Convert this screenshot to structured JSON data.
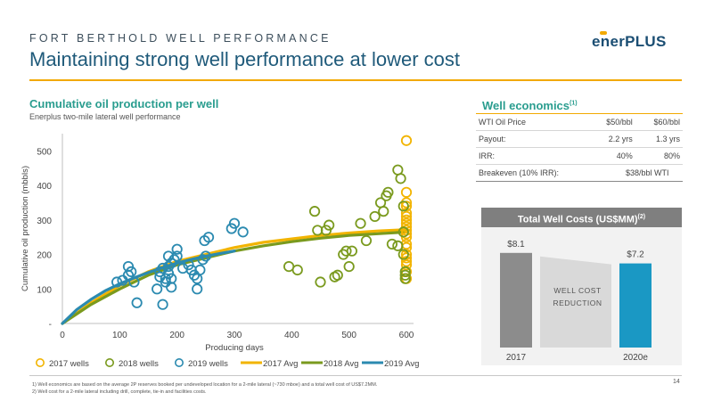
{
  "header": {
    "kicker": "FORT BERTHOLD WELL PERFORMANCE",
    "title": "Maintaining strong well performance at lower cost",
    "logo": {
      "part1": "ener",
      "part2": "PLUS"
    }
  },
  "colors": {
    "y2017": "#f2b400",
    "y2018": "#7a9a1e",
    "y2019": "#2b8ab0",
    "accent": "#f2a900",
    "teal": "#2a9d8f"
  },
  "chart_data": [
    {
      "type": "scatter",
      "title": "Cumulative oil production per well",
      "subtitle": "Enerplus two-mile lateral well performance",
      "xlabel": "Producing days",
      "ylabel": "Cumulative oil production (mbbls)",
      "xlim": [
        0,
        600
      ],
      "ylim": [
        0,
        550
      ],
      "xticks": [
        "0",
        "100",
        "200",
        "300",
        "400",
        "500",
        "600"
      ],
      "yticks": [
        "-",
        "100",
        "200",
        "300",
        "400",
        "500"
      ],
      "grid": false,
      "legend_position": "bottom",
      "series": [
        {
          "name": "2017 wells",
          "kind": "scatter",
          "color": "#f2b400",
          "points": [
            [
              600,
              530
            ],
            [
              600,
              380
            ],
            [
              600,
              350
            ],
            [
              600,
              340
            ],
            [
              600,
              320
            ],
            [
              600,
              310
            ],
            [
              600,
              300
            ],
            [
              600,
              290
            ],
            [
              600,
              280
            ],
            [
              600,
              270
            ],
            [
              600,
              260
            ],
            [
              600,
              250
            ],
            [
              600,
              230
            ],
            [
              600,
              220
            ],
            [
              600,
              200
            ],
            [
              600,
              190
            ],
            [
              600,
              180
            ],
            [
              600,
              170
            ],
            [
              600,
              150
            ],
            [
              600,
              130
            ]
          ]
        },
        {
          "name": "2018 wells",
          "kind": "scatter",
          "color": "#7a9a1e",
          "points": [
            [
              395,
              165
            ],
            [
              410,
              155
            ],
            [
              440,
              325
            ],
            [
              445,
              270
            ],
            [
              450,
              120
            ],
            [
              460,
              270
            ],
            [
              465,
              285
            ],
            [
              475,
              135
            ],
            [
              480,
              140
            ],
            [
              490,
              200
            ],
            [
              495,
              210
            ],
            [
              500,
              165
            ],
            [
              505,
              210
            ],
            [
              520,
              290
            ],
            [
              530,
              240
            ],
            [
              545,
              310
            ],
            [
              555,
              350
            ],
            [
              560,
              325
            ],
            [
              565,
              370
            ],
            [
              568,
              380
            ],
            [
              575,
              230
            ],
            [
              585,
              445
            ],
            [
              590,
              420
            ],
            [
              585,
              225
            ],
            [
              595,
              340
            ],
            [
              595,
              265
            ],
            [
              595,
              200
            ],
            [
              598,
              150
            ],
            [
              598,
              140
            ],
            [
              598,
              130
            ]
          ]
        },
        {
          "name": "2019 wells",
          "kind": "scatter",
          "color": "#2b8ab0",
          "points": [
            [
              95,
              120
            ],
            [
              105,
              125
            ],
            [
              115,
              140
            ],
            [
              115,
              165
            ],
            [
              120,
              150
            ],
            [
              125,
              120
            ],
            [
              130,
              60
            ],
            [
              165,
              100
            ],
            [
              170,
              135
            ],
            [
              170,
              150
            ],
            [
              175,
              160
            ],
            [
              175,
              55
            ],
            [
              180,
              130
            ],
            [
              180,
              120
            ],
            [
              185,
              195
            ],
            [
              185,
              165
            ],
            [
              185,
              145
            ],
            [
              190,
              105
            ],
            [
              190,
              130
            ],
            [
              190,
              175
            ],
            [
              195,
              185
            ],
            [
              200,
              195
            ],
            [
              200,
              215
            ],
            [
              210,
              160
            ],
            [
              220,
              170
            ],
            [
              225,
              155
            ],
            [
              230,
              140
            ],
            [
              235,
              100
            ],
            [
              235,
              130
            ],
            [
              240,
              155
            ],
            [
              245,
              185
            ],
            [
              248,
              240
            ],
            [
              250,
              195
            ],
            [
              255,
              250
            ],
            [
              295,
              275
            ],
            [
              300,
              290
            ],
            [
              315,
              265
            ]
          ]
        },
        {
          "name": "2017 Avg",
          "kind": "line",
          "color": "#f2b400",
          "points": [
            [
              0,
              0
            ],
            [
              50,
              60
            ],
            [
              100,
              110
            ],
            [
              150,
              150
            ],
            [
              200,
              180
            ],
            [
              250,
              200
            ],
            [
              300,
              220
            ],
            [
              350,
              235
            ],
            [
              400,
              245
            ],
            [
              450,
              255
            ],
            [
              500,
              262
            ],
            [
              550,
              268
            ],
            [
              600,
              272
            ]
          ]
        },
        {
          "name": "2018 Avg",
          "kind": "line",
          "color": "#7a9a1e",
          "points": [
            [
              0,
              0
            ],
            [
              50,
              55
            ],
            [
              100,
              100
            ],
            [
              150,
              140
            ],
            [
              200,
              170
            ],
            [
              250,
              190
            ],
            [
              300,
              210
            ],
            [
              350,
              225
            ],
            [
              400,
              237
            ],
            [
              450,
              247
            ],
            [
              500,
              255
            ],
            [
              550,
              260
            ],
            [
              600,
              265
            ]
          ]
        },
        {
          "name": "2019 Avg",
          "kind": "line",
          "color": "#2b8ab0",
          "points": [
            [
              0,
              0
            ],
            [
              25,
              40
            ],
            [
              50,
              70
            ],
            [
              75,
              95
            ],
            [
              100,
              115
            ],
            [
              125,
              132
            ],
            [
              150,
              148
            ],
            [
              175,
              162
            ],
            [
              200,
              175
            ],
            [
              225,
              186
            ],
            [
              250,
              195
            ],
            [
              275,
              203
            ],
            [
              300,
              210
            ]
          ]
        }
      ]
    },
    {
      "type": "bar",
      "title": "Total Well Costs (US$MM)",
      "title_footnote": "(2)",
      "categories": [
        "2017",
        "2020e"
      ],
      "values": [
        8.1,
        7.2
      ],
      "labels": [
        "$8.1",
        "$7.2"
      ],
      "colors": [
        "#8c8c8c",
        "#1a98c4"
      ],
      "annotation": [
        "WELL COST",
        "REDUCTION"
      ]
    }
  ],
  "economics": {
    "title": "Well economics",
    "title_footnote": "(1)",
    "rows": [
      {
        "label": "WTI Oil Price",
        "a": "$50/bbl",
        "b": "$60/bbl"
      },
      {
        "label": "Payout:",
        "a": "2.2 yrs",
        "b": "1.3 yrs"
      },
      {
        "label": "IRR:",
        "a": "40%",
        "b": "80%"
      },
      {
        "label": "Breakeven (10% IRR):",
        "span": "$38/bbl WTI"
      }
    ]
  },
  "footnotes": [
    "1)   Well economics are based on the average 2P reserves booked per undeveloped location for a 2-mile lateral (~730 mboe) and a total well cost of US$7.2MM.",
    "2)   Well cost for a 2-mile lateral including drill, complete, tie-in and facilities costs."
  ],
  "page_number": "14"
}
